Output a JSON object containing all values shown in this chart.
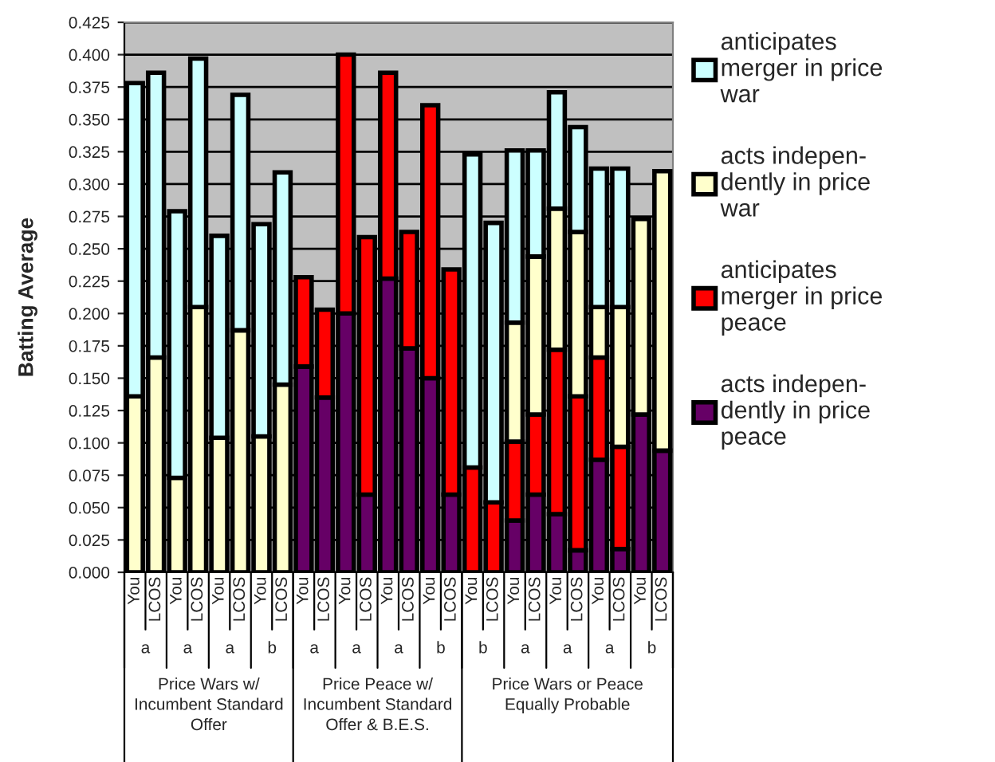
{
  "chart_data": {
    "type": "bar",
    "stacked": true,
    "ylabel": "Batting Average",
    "categories": [
      "You",
      "LCOS",
      "You",
      "LCOS",
      "You",
      "LCOS",
      "You",
      "LCOS",
      "You",
      "LCOS",
      "You",
      "LCOS",
      "You",
      "LCOS",
      "You",
      "LCOS",
      "You",
      "LCOS",
      "You",
      "LCOS",
      "You",
      "LCOS",
      "You",
      "LCOS",
      "You",
      "LCOS"
    ],
    "series": [
      {
        "name": "acts indepen-\ndently in price\npeace",
        "color": "#660066",
        "values": [
          null,
          null,
          null,
          null,
          null,
          null,
          null,
          null,
          0.159,
          0.135,
          0.2,
          0.06,
          0.227,
          0.173,
          0.15,
          0.06,
          null,
          null,
          0.04,
          0.06,
          0.045,
          0.017,
          0.087,
          0.018,
          0.122,
          0.094
        ]
      },
      {
        "name": "anticipates\nmerger in price\npeace",
        "color": "#ff0000",
        "values": [
          null,
          null,
          null,
          null,
          null,
          null,
          null,
          null,
          0.069,
          0.068,
          0.2,
          0.199,
          0.159,
          0.09,
          0.211,
          0.174,
          0.081,
          0.054,
          0.061,
          0.062,
          0.127,
          0.119,
          0.079,
          0.079,
          null,
          null
        ]
      },
      {
        "name": "acts indepen-\ndently in price\nwar",
        "color": "#ffffcc",
        "values": [
          0.136,
          0.166,
          0.073,
          0.205,
          0.104,
          0.187,
          0.105,
          0.145,
          null,
          null,
          null,
          null,
          null,
          null,
          null,
          null,
          null,
          null,
          0.092,
          0.122,
          0.109,
          0.127,
          0.039,
          0.108,
          0.151,
          0.216
        ]
      },
      {
        "name": "anticipates\nmerger in price\nwar",
        "color": "#ccffff",
        "values": [
          0.242,
          0.22,
          0.206,
          0.192,
          0.156,
          0.182,
          0.164,
          0.164,
          null,
          null,
          null,
          null,
          null,
          null,
          null,
          null,
          0.242,
          0.216,
          0.133,
          0.082,
          0.09,
          0.081,
          0.107,
          0.107,
          null,
          null
        ]
      }
    ],
    "ylim": [
      0,
      0.425
    ],
    "yticks": [
      {
        "value": 0,
        "label": "0.000"
      },
      {
        "value": 0.025,
        "label": "0.025"
      },
      {
        "value": 0.05,
        "label": "0.050"
      },
      {
        "value": 0.075,
        "label": "0.075"
      },
      {
        "value": 0.1,
        "label": "0.100"
      },
      {
        "value": 0.125,
        "label": "0.125"
      },
      {
        "value": 0.15,
        "label": "0.150"
      },
      {
        "value": 0.175,
        "label": "0.175"
      },
      {
        "value": 0.2,
        "label": "0.200"
      },
      {
        "value": 0.225,
        "label": "0.225"
      },
      {
        "value": 0.25,
        "label": "0.250"
      },
      {
        "value": 0.275,
        "label": "0.275"
      },
      {
        "value": 0.3,
        "label": "0.300"
      },
      {
        "value": 0.325,
        "label": "0.325"
      },
      {
        "value": 0.35,
        "label": "0.350"
      },
      {
        "value": 0.375,
        "label": "0.375"
      },
      {
        "value": 0.4,
        "label": "0.400"
      },
      {
        "value": 0.425,
        "label": "0.425"
      }
    ],
    "grid": "y",
    "legend": "right",
    "annotations": [
      "a",
      "a",
      "a",
      "b",
      "a",
      "a",
      "a",
      "b",
      "b",
      "a",
      "a",
      "a",
      "b",
      "Price Wars w/\nIncumbent Standard\nOffer",
      "Price Peace w/\nIncumbent Standard\nOffer & B.E.S.",
      "Price Wars or Peace\nEqually Probable"
    ]
  }
}
